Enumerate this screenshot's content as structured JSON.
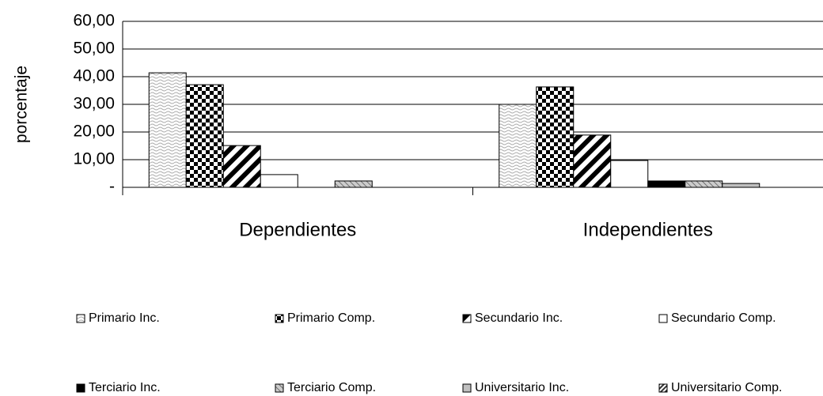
{
  "chart_data": {
    "type": "bar",
    "y_label": "porcentaje",
    "categories": [
      "Dependientes",
      "Independientes"
    ],
    "series": [
      {
        "name": "Primario Inc.",
        "values": [
          41.4,
          30.0
        ]
      },
      {
        "name": "Primario Comp.",
        "values": [
          37.1,
          36.3
        ]
      },
      {
        "name": "Secundario Inc.",
        "values": [
          15.1,
          18.9
        ]
      },
      {
        "name": "Secundario Comp.",
        "values": [
          4.6,
          9.7
        ]
      },
      {
        "name": "Terciario Inc.",
        "values": [
          0,
          2.3
        ]
      },
      {
        "name": "Terciario Comp.",
        "values": [
          2.3,
          2.3
        ]
      },
      {
        "name": "Universitario Inc.",
        "values": [
          0,
          1.4
        ]
      },
      {
        "name": "Universitario Comp.",
        "values": [
          0,
          0
        ]
      }
    ],
    "ylim": [
      0,
      60
    ],
    "yticks": [
      {
        "value": 0,
        "label": "-"
      },
      {
        "value": 10,
        "label": "10,00"
      },
      {
        "value": 20,
        "label": "20,00"
      },
      {
        "value": 30,
        "label": "30,00"
      },
      {
        "value": 40,
        "label": "40,00"
      },
      {
        "value": 50,
        "label": "50,00"
      },
      {
        "value": 60,
        "label": "60,00"
      }
    ],
    "grid": true
  }
}
